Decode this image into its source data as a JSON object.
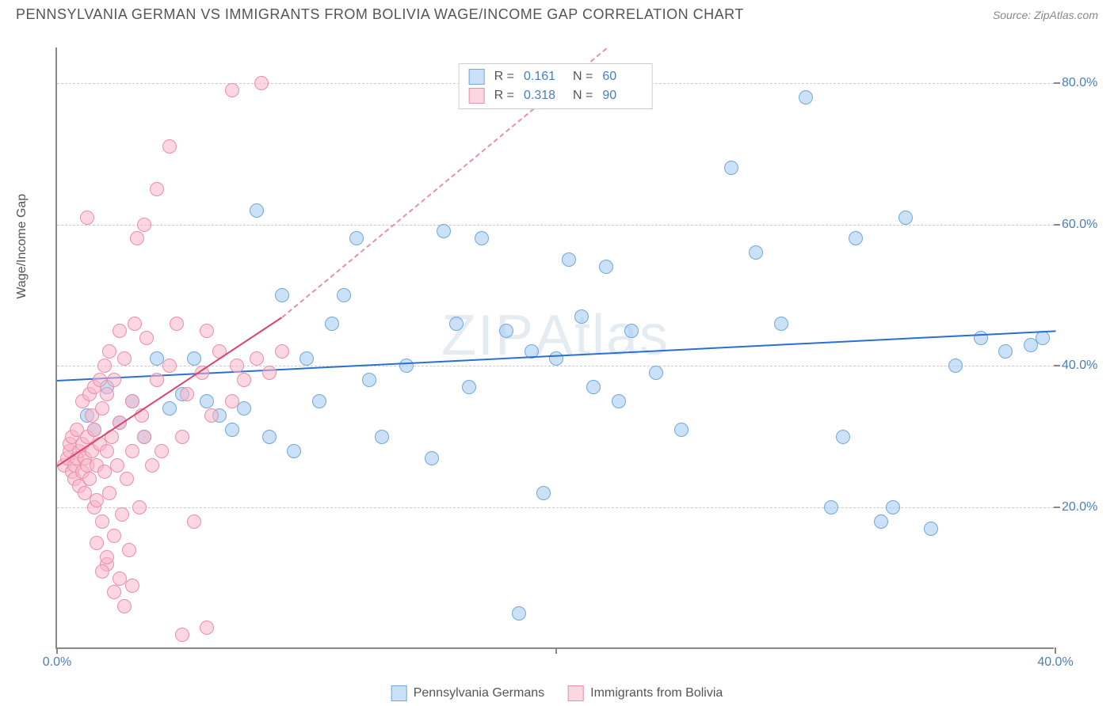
{
  "title": "PENNSYLVANIA GERMAN VS IMMIGRANTS FROM BOLIVIA WAGE/INCOME GAP CORRELATION CHART",
  "source": "Source: ZipAtlas.com",
  "watermark": "ZIPAtlas",
  "y_axis_label": "Wage/Income Gap",
  "chart": {
    "type": "scatter",
    "xlim": [
      0,
      40
    ],
    "ylim": [
      0,
      85
    ],
    "x_ticks": [
      0,
      20,
      40
    ],
    "x_tick_labels": [
      "0.0%",
      "",
      "40.0%"
    ],
    "y_ticks": [
      20,
      40,
      60,
      80
    ],
    "y_tick_labels": [
      "20.0%",
      "40.0%",
      "60.0%",
      "80.0%"
    ],
    "grid_color": "#cccccc",
    "axis_color": "#888888",
    "background": "#ffffff",
    "point_radius": 9,
    "series": [
      {
        "name": "Pennsylvania Germans",
        "label": "Pennsylvania Germans",
        "fill": "rgba(160,200,240,0.55)",
        "stroke": "#6fa8dc",
        "trend_color": "#2a6fd6",
        "R": "0.161",
        "N": "60",
        "trend": {
          "x1": 0,
          "y1": 38,
          "x2": 40,
          "y2": 45
        },
        "points": [
          [
            1.2,
            33
          ],
          [
            1.5,
            31
          ],
          [
            2,
            37
          ],
          [
            2.5,
            32
          ],
          [
            3,
            35
          ],
          [
            3.5,
            30
          ],
          [
            4,
            41
          ],
          [
            4.5,
            34
          ],
          [
            5,
            36
          ],
          [
            5.5,
            41
          ],
          [
            6,
            35
          ],
          [
            6.5,
            33
          ],
          [
            7,
            31
          ],
          [
            7.5,
            34
          ],
          [
            8,
            62
          ],
          [
            8.5,
            30
          ],
          [
            9,
            50
          ],
          [
            9.5,
            28
          ],
          [
            10,
            41
          ],
          [
            10.5,
            35
          ],
          [
            11,
            46
          ],
          [
            11.5,
            50
          ],
          [
            12,
            58
          ],
          [
            12.5,
            38
          ],
          [
            13,
            30
          ],
          [
            14,
            40
          ],
          [
            15,
            27
          ],
          [
            15.5,
            59
          ],
          [
            16,
            46
          ],
          [
            16.5,
            37
          ],
          [
            17,
            58
          ],
          [
            18,
            45
          ],
          [
            18.5,
            5
          ],
          [
            19,
            42
          ],
          [
            19.5,
            22
          ],
          [
            20,
            41
          ],
          [
            20.5,
            55
          ],
          [
            21,
            47
          ],
          [
            21.5,
            37
          ],
          [
            22,
            54
          ],
          [
            22.5,
            35
          ],
          [
            23,
            45
          ],
          [
            24,
            39
          ],
          [
            25,
            31
          ],
          [
            27,
            68
          ],
          [
            28,
            56
          ],
          [
            29,
            46
          ],
          [
            30,
            78
          ],
          [
            31,
            20
          ],
          [
            31.5,
            30
          ],
          [
            32,
            58
          ],
          [
            33,
            18
          ],
          [
            33.5,
            20
          ],
          [
            34,
            61
          ],
          [
            35,
            17
          ],
          [
            36,
            40
          ],
          [
            37,
            44
          ],
          [
            38,
            42
          ],
          [
            39,
            43
          ],
          [
            39.5,
            44
          ]
        ]
      },
      {
        "name": "Immigrants from Bolivia",
        "label": "Immigrants from Bolivia",
        "fill": "rgba(250,180,200,0.55)",
        "stroke": "#e890a8",
        "trend_color": "#d8456b",
        "R": "0.318",
        "N": "90",
        "trend": {
          "x1": 0,
          "y1": 26,
          "x2": 9,
          "y2": 47
        },
        "trend_dash": {
          "x1": 9,
          "y1": 47,
          "x2": 22,
          "y2": 85
        },
        "points": [
          [
            0.3,
            26
          ],
          [
            0.4,
            27
          ],
          [
            0.5,
            28
          ],
          [
            0.5,
            29
          ],
          [
            0.6,
            25
          ],
          [
            0.6,
            30
          ],
          [
            0.7,
            24
          ],
          [
            0.7,
            26
          ],
          [
            0.8,
            27
          ],
          [
            0.8,
            31
          ],
          [
            0.9,
            23
          ],
          [
            0.9,
            28
          ],
          [
            1.0,
            25
          ],
          [
            1.0,
            29
          ],
          [
            1.0,
            35
          ],
          [
            1.1,
            22
          ],
          [
            1.1,
            27
          ],
          [
            1.2,
            61
          ],
          [
            1.2,
            30
          ],
          [
            1.2,
            26
          ],
          [
            1.3,
            36
          ],
          [
            1.3,
            24
          ],
          [
            1.4,
            33
          ],
          [
            1.4,
            28
          ],
          [
            1.5,
            20
          ],
          [
            1.5,
            37
          ],
          [
            1.5,
            31
          ],
          [
            1.6,
            15
          ],
          [
            1.6,
            26
          ],
          [
            1.7,
            38
          ],
          [
            1.7,
            29
          ],
          [
            1.8,
            18
          ],
          [
            1.8,
            34
          ],
          [
            1.9,
            40
          ],
          [
            1.9,
            25
          ],
          [
            2.0,
            12
          ],
          [
            2.0,
            36
          ],
          [
            2.0,
            28
          ],
          [
            2.1,
            42
          ],
          [
            2.1,
            22
          ],
          [
            2.2,
            30
          ],
          [
            2.3,
            16
          ],
          [
            2.3,
            38
          ],
          [
            2.4,
            26
          ],
          [
            2.5,
            10
          ],
          [
            2.5,
            45
          ],
          [
            2.5,
            32
          ],
          [
            2.6,
            19
          ],
          [
            2.7,
            41
          ],
          [
            2.8,
            24
          ],
          [
            2.9,
            14
          ],
          [
            3.0,
            35
          ],
          [
            3.0,
            28
          ],
          [
            3.1,
            46
          ],
          [
            3.2,
            58
          ],
          [
            3.3,
            20
          ],
          [
            3.4,
            33
          ],
          [
            3.5,
            60
          ],
          [
            3.5,
            30
          ],
          [
            3.6,
            44
          ],
          [
            3.8,
            26
          ],
          [
            4.0,
            65
          ],
          [
            4.0,
            38
          ],
          [
            4.2,
            28
          ],
          [
            4.5,
            71
          ],
          [
            4.5,
            40
          ],
          [
            4.8,
            46
          ],
          [
            5.0,
            30
          ],
          [
            5.0,
            2
          ],
          [
            5.2,
            36
          ],
          [
            5.5,
            18
          ],
          [
            5.8,
            39
          ],
          [
            6.0,
            3
          ],
          [
            6.0,
            45
          ],
          [
            6.2,
            33
          ],
          [
            6.5,
            42
          ],
          [
            7.0,
            79
          ],
          [
            7.0,
            35
          ],
          [
            7.2,
            40
          ],
          [
            7.5,
            38
          ],
          [
            8.0,
            41
          ],
          [
            8.2,
            80
          ],
          [
            8.5,
            39
          ],
          [
            9.0,
            42
          ],
          [
            2.3,
            8
          ],
          [
            2.7,
            6
          ],
          [
            3.0,
            9
          ],
          [
            1.8,
            11
          ],
          [
            2.0,
            13
          ],
          [
            1.6,
            21
          ]
        ]
      }
    ]
  },
  "bottom_legend": [
    {
      "label": "Pennsylvania Germans",
      "fill": "rgba(160,200,240,0.55)",
      "stroke": "#6fa8dc"
    },
    {
      "label": "Immigrants from Bolivia",
      "fill": "rgba(250,180,200,0.55)",
      "stroke": "#e890a8"
    }
  ]
}
